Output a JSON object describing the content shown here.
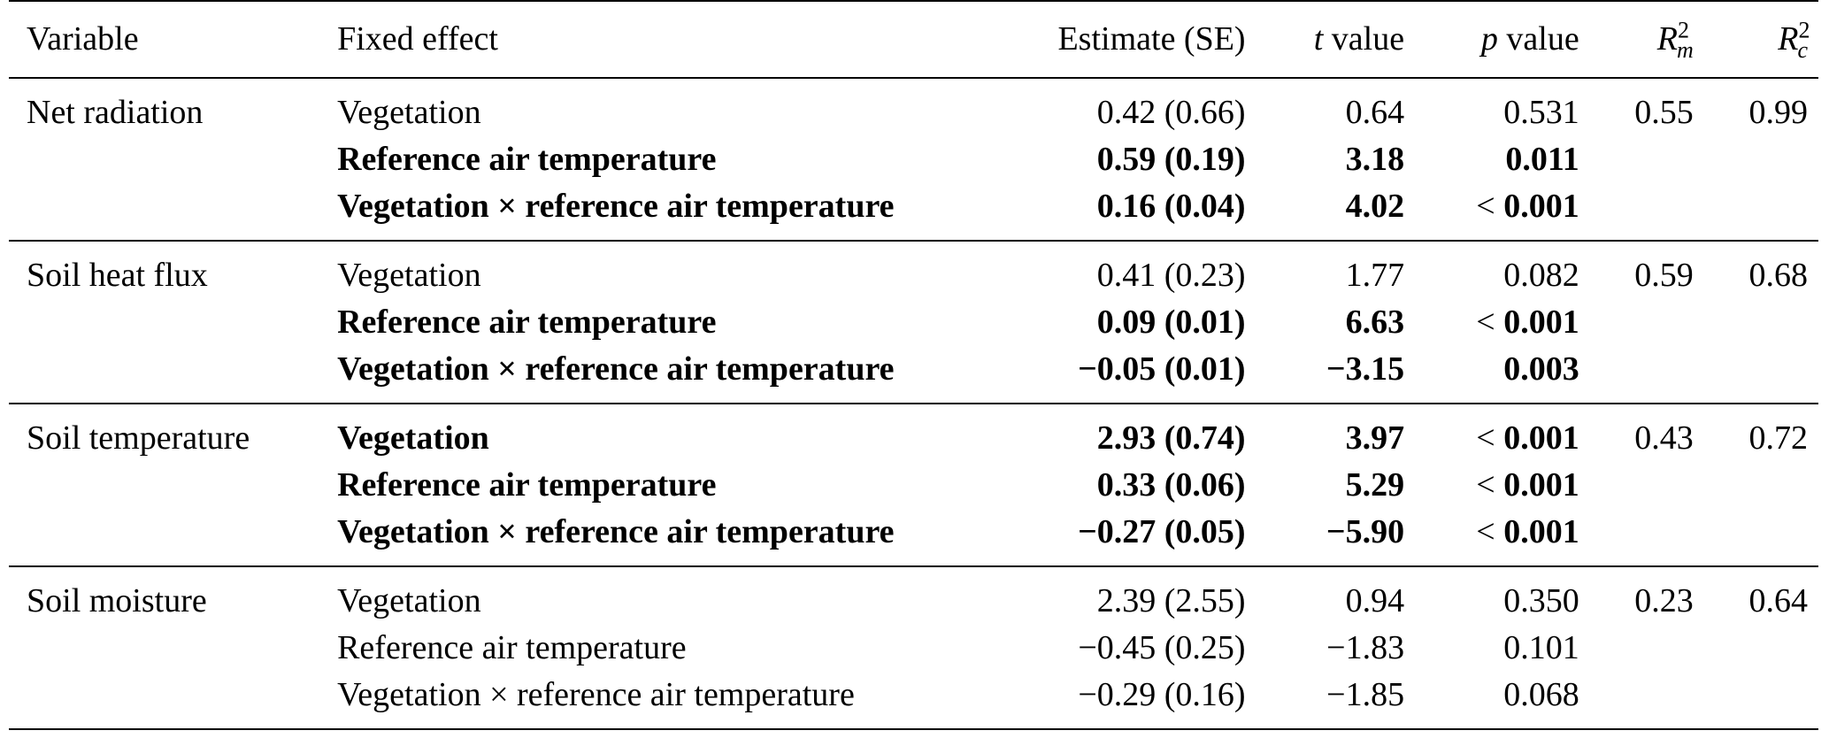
{
  "header": {
    "variable": "Variable",
    "fixed_effect": "Fixed effect",
    "estimate": "Estimate (SE)",
    "t_sym": "t",
    "t_rest": " value",
    "p_sym": "p",
    "p_rest": " value",
    "rm_base": "R",
    "rm_sup": "2",
    "rm_sub": "m",
    "rc_base": "R",
    "rc_sup": "2",
    "rc_sub": "c"
  },
  "groups": [
    {
      "variable": "Net radiation",
      "rm": "0.55",
      "rc": "0.99",
      "rows": [
        {
          "effect": "Vegetation",
          "estimate": "0.42 (0.66)",
          "t": "0.64",
          "p_prefix": "",
          "p": "0.531",
          "bold": false
        },
        {
          "effect": "Reference air temperature",
          "estimate": "0.59 (0.19)",
          "t": "3.18",
          "p_prefix": "",
          "p": "0.011",
          "bold": true
        },
        {
          "effect": "Vegetation × reference air temperature",
          "estimate": "0.16 (0.04)",
          "t": "4.02",
          "p_prefix": "< ",
          "p": "0.001",
          "bold": true
        }
      ]
    },
    {
      "variable": "Soil heat flux",
      "rm": "0.59",
      "rc": "0.68",
      "rows": [
        {
          "effect": "Vegetation",
          "estimate": "0.41 (0.23)",
          "t": "1.77",
          "p_prefix": "",
          "p": "0.082",
          "bold": false
        },
        {
          "effect": "Reference air temperature",
          "estimate": "0.09 (0.01)",
          "t": "6.63",
          "p_prefix": "< ",
          "p": "0.001",
          "bold": true
        },
        {
          "effect": "Vegetation × reference air temperature",
          "estimate": "−0.05 (0.01)",
          "t": "−3.15",
          "p_prefix": "",
          "p": "0.003",
          "bold": true
        }
      ]
    },
    {
      "variable": "Soil temperature",
      "rm": "0.43",
      "rc": "0.72",
      "rows": [
        {
          "effect": "Vegetation",
          "estimate": "2.93 (0.74)",
          "t": "3.97",
          "p_prefix": "< ",
          "p": "0.001",
          "bold": true
        },
        {
          "effect": "Reference air temperature",
          "estimate": "0.33 (0.06)",
          "t": "5.29",
          "p_prefix": "< ",
          "p": "0.001",
          "bold": true
        },
        {
          "effect": "Vegetation × reference air temperature",
          "estimate": "−0.27 (0.05)",
          "t": "−5.90",
          "p_prefix": "< ",
          "p": "0.001",
          "bold": true
        }
      ]
    },
    {
      "variable": "Soil moisture",
      "rm": "0.23",
      "rc": "0.64",
      "rows": [
        {
          "effect": "Vegetation",
          "estimate": "2.39 (2.55)",
          "t": "0.94",
          "p_prefix": "",
          "p": "0.350",
          "bold": false
        },
        {
          "effect": "Reference air temperature",
          "estimate": "−0.45 (0.25)",
          "t": "−1.83",
          "p_prefix": "",
          "p": "0.101",
          "bold": false
        },
        {
          "effect": "Vegetation × reference air temperature",
          "estimate": "−0.29 (0.16)",
          "t": "−1.85",
          "p_prefix": "",
          "p": "0.068",
          "bold": false
        }
      ]
    }
  ]
}
